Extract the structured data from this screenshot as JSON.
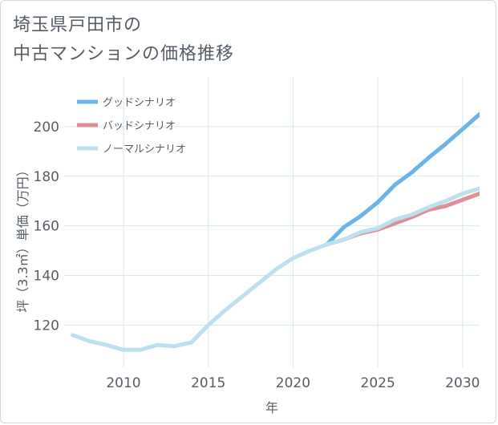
{
  "title": {
    "line1": "埼玉県戸田市の",
    "line2": "中古マンションの価格推移"
  },
  "chart_data": {
    "type": "line",
    "xlabel": "年",
    "ylabel": "坪（3.3㎡）単価（万円）",
    "xlim": [
      2006.5,
      2031
    ],
    "ylim": [
      103,
      220
    ],
    "x_ticks": [
      2010,
      2015,
      2020,
      2025,
      2030
    ],
    "y_ticks": [
      120,
      140,
      160,
      180,
      200
    ],
    "grid": true,
    "legend_position": "top-left",
    "series": [
      {
        "name": "グッドシナリオ",
        "color": "#6cb4e8",
        "x": [
          2022,
          2023,
          2024,
          2025,
          2026,
          2027,
          2028,
          2029,
          2030,
          2031
        ],
        "values": [
          152.5,
          159.5,
          164,
          169.5,
          176.5,
          181.5,
          187.5,
          193,
          199,
          205
        ]
      },
      {
        "name": "バッドシナリオ",
        "color": "#de8f96",
        "x": [
          2022,
          2023,
          2024,
          2025,
          2026,
          2027,
          2028,
          2029,
          2030,
          2031
        ],
        "values": [
          152.5,
          154.5,
          157,
          158.5,
          161,
          163.5,
          166.5,
          168,
          170.5,
          173
        ]
      },
      {
        "name": "ノーマルシナリオ",
        "color": "#bde0ee",
        "x": [
          2007,
          2008,
          2009,
          2010,
          2011,
          2012,
          2013,
          2014,
          2015,
          2016,
          2017,
          2018,
          2019,
          2020,
          2021,
          2022,
          2023,
          2024,
          2025,
          2026,
          2027,
          2028,
          2029,
          2030,
          2031
        ],
        "values": [
          116,
          113.5,
          112,
          110,
          110,
          112,
          111.5,
          113,
          120,
          126,
          131.5,
          137,
          142.5,
          147,
          150,
          152.5,
          154.5,
          157.5,
          159,
          162.5,
          164.5,
          167.5,
          170,
          173,
          175
        ]
      }
    ]
  }
}
